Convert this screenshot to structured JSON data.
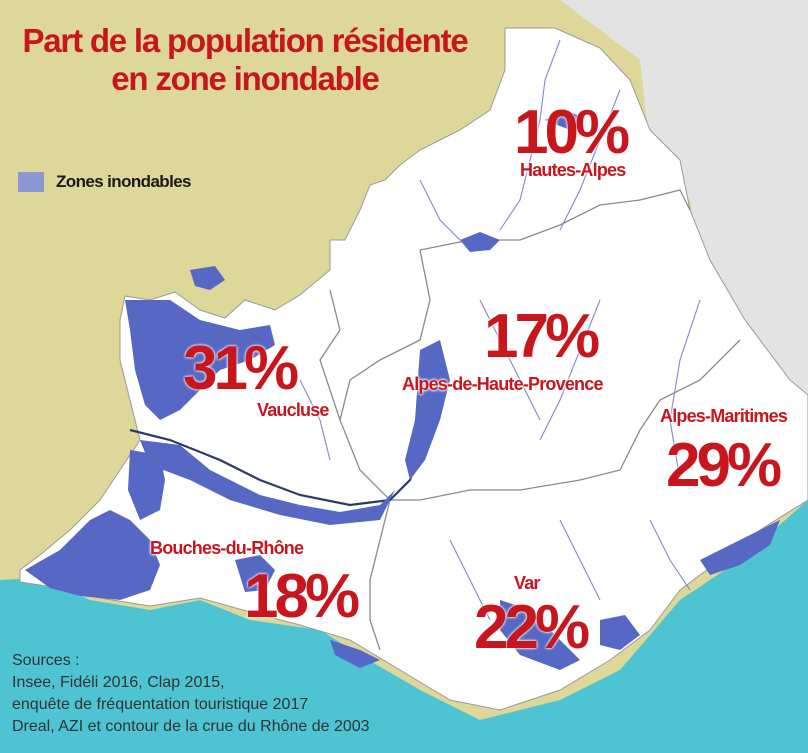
{
  "title": {
    "line1": "Part de la population résidente",
    "line2": "en zone inondable"
  },
  "legend": {
    "label": "Zones inondables",
    "color": "#8c97d6"
  },
  "colors": {
    "land_outside": "#ddd79a",
    "land_neighbor": "#e3e3e3",
    "sea": "#4ec3d2",
    "region": "#ffffff",
    "flood": "#5667c4",
    "label_red": "#c8161f"
  },
  "departments": [
    {
      "name": "Hautes-Alpes",
      "percent": "10%",
      "value": 10
    },
    {
      "name": "Alpes-de-Haute-Provence",
      "percent": "17%",
      "value": 17
    },
    {
      "name": "Vaucluse",
      "percent": "31%",
      "value": 31
    },
    {
      "name": "Alpes-Maritimes",
      "percent": "29%",
      "value": 29
    },
    {
      "name": "Bouches-du-Rhône",
      "percent": "18%",
      "value": 18
    },
    {
      "name": "Var",
      "percent": "22%",
      "value": 22
    }
  ],
  "sources": {
    "heading": "Sources :",
    "line1": "Insee, Fidéli 2016, Clap 2015,",
    "line2": "enquête de fréquentation touristique 2017",
    "line3": "Dreal, AZI et contour de la crue du Rhône de 2003"
  }
}
